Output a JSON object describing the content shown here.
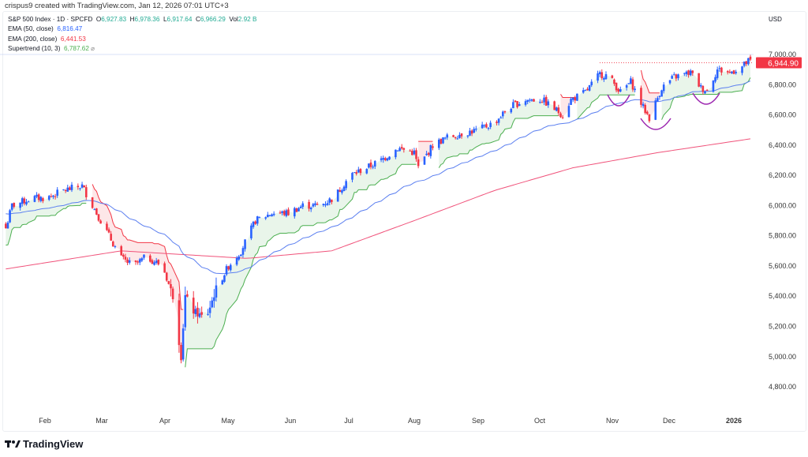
{
  "credit": "crispus9 created with TradingView.com, Jan 12, 2026 07:01 UTC+3",
  "legend": {
    "symbol": "S&P 500 Index · 1D · SPCFD",
    "o_label": "O",
    "o": "6,927.83",
    "h_label": "H",
    "h": "6,978.36",
    "l_label": "L",
    "l": "6,917.64",
    "c_label": "C",
    "c": "6,966.29",
    "vol_label": "Vol",
    "vol": "2.92 B",
    "ema50_label": "EMA (50, close)",
    "ema50": "6,816.47",
    "ema200_label": "EMA (200, close)",
    "ema200": "6,441.53",
    "supertrend_label": "Supertrend (10, 3)",
    "supertrend": "6,787.62"
  },
  "currency": "USD",
  "brand": "TradingView",
  "colors": {
    "up": "#2962ff",
    "down": "#f23645",
    "ema50": "#5b7ff0",
    "ema200": "#f0527a",
    "st_up": "#4caf50",
    "st_down": "#f23645",
    "annotation": "#9c27b0"
  },
  "chart_data": {
    "type": "candlestick",
    "ylim": [
      4700,
      7100
    ],
    "y_ticks": [
      4800,
      5000,
      5200,
      5400,
      5600,
      5800,
      6000,
      6200,
      6400,
      6600,
      6800,
      7000
    ],
    "y_tick_labels": [
      "4,800.00",
      "5,000.00",
      "5,200.00",
      "5,400.00",
      "5,600.00",
      "5,800.00",
      "6,000.00",
      "6,200.00",
      "6,400.00",
      "6,600.00",
      "6,800.00",
      "7,000.00"
    ],
    "x_ticks": [
      "Feb",
      "Mar",
      "Apr",
      "May",
      "Jun",
      "Jul",
      "Aug",
      "Sep",
      "Oct",
      "Nov",
      "Dec",
      "2026"
    ],
    "last_price": 6944.9,
    "last_price_label": "6,944.90",
    "close_path": [
      [
        "2025-01-13",
        5850
      ],
      [
        "2025-01-16",
        6000
      ],
      [
        "2025-01-26",
        6050
      ],
      [
        "2025-02-02",
        6050
      ],
      [
        "2025-02-10",
        6100
      ],
      [
        "2025-02-19",
        6130
      ],
      [
        "2025-02-26",
        5950
      ],
      [
        "2025-03-04",
        5800
      ],
      [
        "2025-03-10",
        5650
      ],
      [
        "2025-03-16",
        5600
      ],
      [
        "2025-03-22",
        5660
      ],
      [
        "2025-03-30",
        5600
      ],
      [
        "2025-04-04",
        5400
      ],
      [
        "2025-04-08",
        5000
      ],
      [
        "2025-04-10",
        5400
      ],
      [
        "2025-04-14",
        5300
      ],
      [
        "2025-04-20",
        5250
      ],
      [
        "2025-04-25",
        5450
      ],
      [
        "2025-05-01",
        5600
      ],
      [
        "2025-05-07",
        5700
      ],
      [
        "2025-05-14",
        5900
      ],
      [
        "2025-05-22",
        5950
      ],
      [
        "2025-05-30",
        5950
      ],
      [
        "2025-06-06",
        6000
      ],
      [
        "2025-06-14",
        6000
      ],
      [
        "2025-06-21",
        6050
      ],
      [
        "2025-06-29",
        6200
      ],
      [
        "2025-07-07",
        6250
      ],
      [
        "2025-07-14",
        6300
      ],
      [
        "2025-07-22",
        6380
      ],
      [
        "2025-07-30",
        6350
      ],
      [
        "2025-08-01",
        6250
      ],
      [
        "2025-08-08",
        6400
      ],
      [
        "2025-08-15",
        6450
      ],
      [
        "2025-08-23",
        6480
      ],
      [
        "2025-08-30",
        6500
      ],
      [
        "2025-09-07",
        6550
      ],
      [
        "2025-09-14",
        6650
      ],
      [
        "2025-09-22",
        6700
      ],
      [
        "2025-09-30",
        6700
      ],
      [
        "2025-10-10",
        6600
      ],
      [
        "2025-10-14",
        6700
      ],
      [
        "2025-10-21",
        6750
      ],
      [
        "2025-10-28",
        6870
      ],
      [
        "2025-11-01",
        6860
      ],
      [
        "2025-11-07",
        6750
      ],
      [
        "2025-11-12",
        6820
      ],
      [
        "2025-11-18",
        6650
      ],
      [
        "2025-11-21",
        6580
      ],
      [
        "2025-11-27",
        6780
      ],
      [
        "2025-12-03",
        6850
      ],
      [
        "2025-12-11",
        6880
      ],
      [
        "2025-12-16",
        6780
      ],
      [
        "2025-12-19",
        6760
      ],
      [
        "2025-12-24",
        6900
      ],
      [
        "2025-12-30",
        6880
      ],
      [
        "2026-01-05",
        6920
      ],
      [
        "2026-01-09",
        6966
      ]
    ],
    "ema200_path": [
      [
        "2025-01-13",
        5580
      ],
      [
        "2025-03-10",
        5700
      ],
      [
        "2025-05-10",
        5650
      ],
      [
        "2025-06-20",
        5700
      ],
      [
        "2025-07-30",
        5900
      ],
      [
        "2025-09-07",
        6100
      ],
      [
        "2025-10-15",
        6250
      ],
      [
        "2025-11-25",
        6350
      ],
      [
        "2026-01-09",
        6441.53
      ]
    ]
  }
}
